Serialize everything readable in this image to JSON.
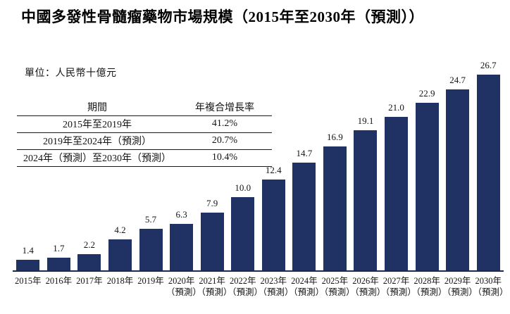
{
  "title": "中國多發性骨髓瘤藥物市場規模（2015年至2030年（預測））",
  "unit_label": "單位：人民幣十億元",
  "cagr_table": {
    "headers": [
      "期間",
      "年複合增長率"
    ],
    "rows": [
      {
        "period": "2015年至2019年",
        "cagr": "41.2%"
      },
      {
        "period": "2019年至2024年（預測）",
        "cagr": "20.7%"
      },
      {
        "period": "2024年（預測）至2030年（預測）",
        "cagr": "10.4%"
      }
    ]
  },
  "chart_data": {
    "type": "bar",
    "title": "中國多發性骨髓瘤藥物市場規模（2015年至2030年（預測））",
    "xlabel": "",
    "ylabel": "人民幣十億元",
    "ylim": [
      0,
      28
    ],
    "grid": false,
    "legend": false,
    "value_labels_position": "above-bars",
    "categories": [
      "2015年",
      "2016年",
      "2017年",
      "2018年",
      "2019年",
      "2020年",
      "2021年",
      "2022年",
      "2023年",
      "2024年",
      "2025年",
      "2026年",
      "2027年",
      "2028年",
      "2029年",
      "2030年"
    ],
    "category_sublabels": [
      "",
      "",
      "",
      "",
      "",
      "（預測）",
      "（預測）",
      "（預測）",
      "（預測）",
      "（預測）",
      "（預測）",
      "（預測）",
      "（預測）",
      "（預測）",
      "（預測）",
      "（預測）"
    ],
    "values": [
      1.4,
      1.7,
      2.2,
      4.2,
      5.7,
      6.3,
      7.9,
      10.0,
      12.4,
      14.7,
      16.9,
      19.1,
      21.0,
      22.9,
      24.7,
      26.7
    ],
    "value_labels": [
      "1.4",
      "1.7",
      "2.2",
      "4.2",
      "5.7",
      "6.3",
      "7.9",
      "10.0",
      "12.4",
      "14.7",
      "16.9",
      "19.1",
      "21.0",
      "22.9",
      "24.7",
      "26.7"
    ]
  },
  "colors": {
    "bar": "#203263",
    "axis": "#1b2a52",
    "text": "#141414",
    "background": "#ffffff"
  }
}
